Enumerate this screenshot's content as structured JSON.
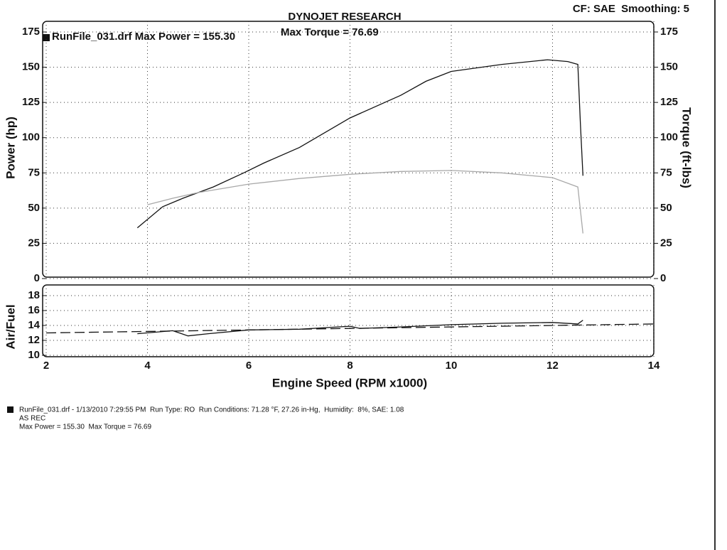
{
  "header": {
    "title": "DYNOJET RESEARCH",
    "settings": "CF: SAE  Smoothing: 5"
  },
  "chart_data": [
    {
      "type": "line",
      "annotations": [
        "RunFile_031.drf Max Power = 155.30",
        "Max Torque = 76.69"
      ],
      "ylabel": "Power (hp)",
      "y2label": "Torque (ft-lbs)",
      "xlim": [
        2,
        14
      ],
      "xticks": [
        2,
        4,
        6,
        8,
        10,
        12,
        14
      ],
      "ylim": [
        0,
        175
      ],
      "yticks": [
        0,
        25,
        50,
        75,
        100,
        125,
        150,
        175
      ],
      "y2lim": [
        0,
        175
      ],
      "y2ticks": [
        0,
        25,
        50,
        75,
        100,
        125,
        150,
        175
      ],
      "grid": true,
      "series": [
        {
          "color": "#111111",
          "x": [
            3.8,
            4.3,
            4.7,
            5.3,
            5.9,
            6.3,
            7.0,
            8.0,
            9.0,
            9.5,
            10.0,
            11.0,
            11.9,
            12.3,
            12.5,
            12.55,
            12.6
          ],
          "values": [
            36,
            51,
            57,
            65,
            75,
            82,
            93,
            114,
            130,
            140,
            147,
            152,
            155.3,
            154,
            152,
            110,
            73
          ]
        },
        {
          "color": "#a8a8a8",
          "axis": "y2",
          "x": [
            4.0,
            4.5,
            5.0,
            6.0,
            7.0,
            8.0,
            9.0,
            10.0,
            11.0,
            12.0,
            12.5,
            12.6
          ],
          "values": [
            52.4,
            57,
            61,
            67,
            71,
            74,
            76,
            76.69,
            75,
            71.6,
            65,
            32
          ]
        }
      ]
    },
    {
      "type": "line",
      "ylabel": "Air/Fuel",
      "xlabel": "Engine Speed (RPM x1000)",
      "xlim": [
        2,
        14
      ],
      "xticks": [
        2,
        4,
        6,
        8,
        10,
        12,
        14
      ],
      "ylim": [
        10,
        18
      ],
      "yticks": [
        10,
        12,
        14,
        16,
        18
      ],
      "grid": true,
      "series": [
        {
          "color": "#111111",
          "x": [
            3.8,
            4.5,
            4.8,
            5.2,
            6.0,
            7.0,
            8.0,
            8.2,
            9.0,
            10.0,
            11.0,
            12.0,
            12.5,
            12.6
          ],
          "values": [
            12.9,
            13.3,
            12.6,
            12.9,
            13.4,
            13.5,
            13.9,
            13.6,
            13.8,
            14.1,
            14.3,
            14.4,
            14.2,
            14.7
          ]
        },
        {
          "color": "#111111",
          "dashed": true,
          "x": [
            2,
            14
          ],
          "values": [
            13.0,
            14.2
          ]
        }
      ]
    }
  ],
  "footer": {
    "lines": [
      "RunFile_031.drf - 1/13/2010 7:29:55 PM  Run Type: RO  Run Conditions: 71.28 °F, 27.26 in-Hg,  Humidity:  8%, SAE: 1.08",
      "AS REC",
      "Max Power = 155.30  Max Torque = 76.69"
    ]
  }
}
